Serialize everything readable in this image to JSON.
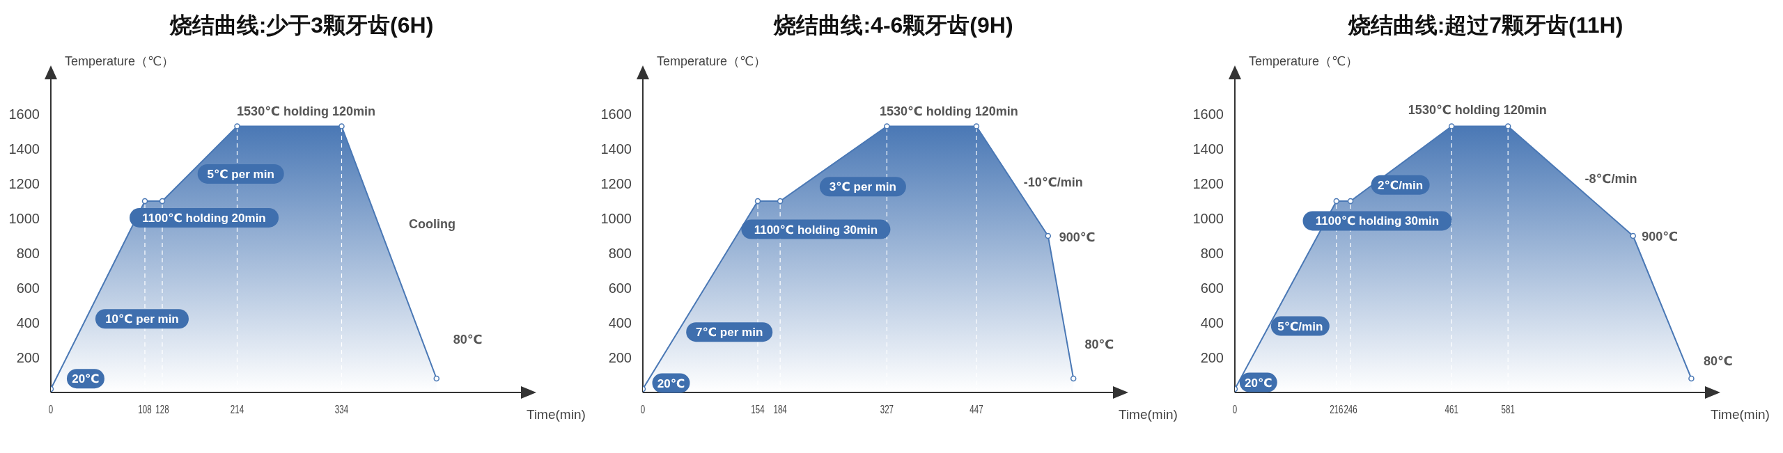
{
  "chart_data": [
    {
      "type": "area",
      "title": "烧结曲线:少于3颗牙齿(6H)",
      "xlabel": "Time(min)",
      "ylabel": "Temperature（℃）",
      "x": [
        0,
        108,
        128,
        214,
        334,
        443
      ],
      "values": [
        20,
        1100,
        1100,
        1530,
        1530,
        80
      ],
      "color": "#4a78b5",
      "marker": "circle",
      "xlim": [
        0,
        540
      ],
      "xticks": [
        0,
        108,
        128,
        214,
        334
      ],
      "ylim": [
        0,
        1800
      ],
      "yticks": [
        200,
        400,
        600,
        800,
        1000,
        1200,
        1400,
        1600
      ],
      "ref_lines": [
        {
          "axis": "x",
          "value": 108,
          "color": "#ffffff",
          "line_style": "dashed"
        },
        {
          "axis": "x",
          "value": 128,
          "color": "#ffffff",
          "line_style": "dashed"
        },
        {
          "axis": "x",
          "value": 214,
          "color": "#ffffff",
          "line_style": "dashed"
        },
        {
          "axis": "x",
          "value": 334,
          "color": "#ffffff",
          "line_style": "dashed"
        }
      ],
      "annotations": [
        "20℃",
        "10℃ per min",
        "1100℃ holding 20min",
        "5℃ per min",
        "1530℃ holding 120min",
        "Cooling",
        "80℃"
      ]
    },
    {
      "type": "area",
      "title": "烧结曲线:4-6颗牙齿(9H)",
      "xlabel": "Time(min)",
      "ylabel": "Temperature（℃）",
      "x": [
        0,
        154,
        184,
        327,
        447,
        543,
        577
      ],
      "values": [
        20,
        1100,
        1100,
        1530,
        1530,
        900,
        80
      ],
      "color": "#4a78b5",
      "marker": "circle",
      "xlim": [
        0,
        630
      ],
      "xticks": [
        0,
        154,
        184,
        327,
        447
      ],
      "ylim": [
        0,
        1800
      ],
      "yticks": [
        200,
        400,
        600,
        800,
        1000,
        1200,
        1400,
        1600
      ],
      "ref_lines": [
        {
          "axis": "x",
          "value": 154,
          "color": "#ffffff",
          "line_style": "dashed"
        },
        {
          "axis": "x",
          "value": 184,
          "color": "#ffffff",
          "line_style": "dashed"
        },
        {
          "axis": "x",
          "value": 327,
          "color": "#ffffff",
          "line_style": "dashed"
        },
        {
          "axis": "x",
          "value": 447,
          "color": "#ffffff",
          "line_style": "dashed"
        }
      ],
      "annotations": [
        "20℃",
        "7℃ per min",
        "1100℃ holding 30min",
        "3℃ per min",
        "1530℃ holding 120min",
        "-10℃/min",
        "900℃",
        "80℃"
      ]
    },
    {
      "type": "area",
      "title": "烧结曲线:超过7颗牙齿(11H)",
      "xlabel": "Time(min)",
      "ylabel": "Temperature（℃）",
      "x": [
        0,
        216,
        246,
        461,
        581,
        847,
        971
      ],
      "values": [
        20,
        1100,
        1100,
        1530,
        1530,
        900,
        80
      ],
      "color": "#4a78b5",
      "marker": "circle",
      "xlim": [
        0,
        1000
      ],
      "xticks": [
        0,
        216,
        246,
        461,
        581
      ],
      "ylim": [
        0,
        1800
      ],
      "yticks": [
        200,
        400,
        600,
        800,
        1000,
        1200,
        1400,
        1600
      ],
      "ref_lines": [
        {
          "axis": "x",
          "value": 216,
          "color": "#ffffff",
          "line_style": "dashed"
        },
        {
          "axis": "x",
          "value": 246,
          "color": "#ffffff",
          "line_style": "dashed"
        },
        {
          "axis": "x",
          "value": 461,
          "color": "#ffffff",
          "line_style": "dashed"
        },
        {
          "axis": "x",
          "value": 581,
          "color": "#ffffff",
          "line_style": "dashed"
        }
      ],
      "annotations": [
        "20℃",
        "5℃/min",
        "1100℃ holding 30min",
        "2℃/min",
        "1530℃ holding 120min",
        "-8℃/min",
        "900℃",
        "80℃"
      ]
    }
  ]
}
